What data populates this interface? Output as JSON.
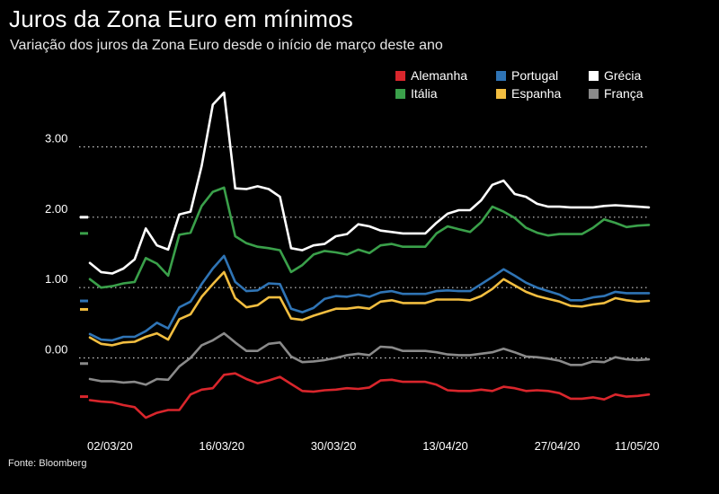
{
  "title": "Juros da Zona Euro em mínimos",
  "subtitle": "Variação dos juros da Zona Euro desde o início de março deste ano",
  "source": "Fonte: Bloomberg",
  "chart_data": {
    "type": "line",
    "ylim": [
      -0.9,
      3.9
    ],
    "yticks": [
      0.0,
      1.0,
      2.0,
      3.0
    ],
    "ytick_labels": [
      "0.00",
      "1.00",
      "2.00",
      "3.00"
    ],
    "x_count": 51,
    "xticks": [
      {
        "index": 0,
        "label": "02/03/20"
      },
      {
        "index": 10,
        "label": "16/03/20"
      },
      {
        "index": 20,
        "label": "30/03/20"
      },
      {
        "index": 30,
        "label": "13/04/20"
      },
      {
        "index": 40,
        "label": "27/04/20"
      },
      {
        "index": 50,
        "label": "11/05/20"
      }
    ],
    "grid": true,
    "legend_position": "top-right",
    "series": [
      {
        "name": "Grécia",
        "color": "#ffffff",
        "values": [
          1.35,
          1.22,
          1.2,
          1.27,
          1.4,
          1.84,
          1.6,
          1.54,
          2.04,
          2.08,
          2.73,
          3.6,
          3.77,
          2.41,
          2.4,
          2.44,
          2.4,
          2.29,
          1.56,
          1.53,
          1.6,
          1.62,
          1.73,
          1.76,
          1.9,
          1.87,
          1.81,
          1.79,
          1.77,
          1.77,
          1.77,
          1.92,
          2.05,
          2.1,
          2.1,
          2.24,
          2.46,
          2.52,
          2.33,
          2.29,
          2.19,
          2.15,
          2.15,
          2.14,
          2.14,
          2.14,
          2.16,
          2.17,
          2.16,
          2.15,
          2.14
        ]
      },
      {
        "name": "Itália",
        "color": "#3aa04a",
        "values": [
          1.12,
          1.0,
          1.02,
          1.06,
          1.08,
          1.42,
          1.34,
          1.17,
          1.75,
          1.78,
          2.16,
          2.36,
          2.42,
          1.73,
          1.63,
          1.58,
          1.56,
          1.53,
          1.22,
          1.32,
          1.47,
          1.52,
          1.5,
          1.47,
          1.54,
          1.49,
          1.6,
          1.62,
          1.58,
          1.58,
          1.58,
          1.77,
          1.87,
          1.83,
          1.79,
          1.93,
          2.15,
          2.08,
          1.99,
          1.85,
          1.78,
          1.74,
          1.76,
          1.76,
          1.76,
          1.85,
          1.97,
          1.92,
          1.86,
          1.88,
          1.89
        ]
      },
      {
        "name": "Portugal",
        "color": "#2f74b5",
        "values": [
          0.34,
          0.26,
          0.25,
          0.3,
          0.3,
          0.38,
          0.5,
          0.42,
          0.72,
          0.8,
          1.05,
          1.27,
          1.45,
          1.08,
          0.95,
          0.96,
          1.06,
          1.05,
          0.7,
          0.65,
          0.71,
          0.84,
          0.88,
          0.87,
          0.9,
          0.87,
          0.93,
          0.95,
          0.91,
          0.91,
          0.91,
          0.95,
          0.96,
          0.95,
          0.95,
          1.05,
          1.15,
          1.26,
          1.17,
          1.07,
          1.0,
          0.95,
          0.9,
          0.82,
          0.82,
          0.86,
          0.88,
          0.94,
          0.92,
          0.92,
          0.92
        ]
      },
      {
        "name": "Espanha",
        "color": "#f2be40",
        "values": [
          0.29,
          0.2,
          0.18,
          0.22,
          0.23,
          0.3,
          0.35,
          0.26,
          0.55,
          0.62,
          0.87,
          1.05,
          1.22,
          0.85,
          0.72,
          0.75,
          0.86,
          0.86,
          0.56,
          0.54,
          0.6,
          0.65,
          0.7,
          0.7,
          0.72,
          0.7,
          0.8,
          0.82,
          0.78,
          0.78,
          0.78,
          0.83,
          0.83,
          0.83,
          0.82,
          0.88,
          0.98,
          1.12,
          1.03,
          0.94,
          0.88,
          0.84,
          0.8,
          0.74,
          0.73,
          0.76,
          0.78,
          0.85,
          0.82,
          0.8,
          0.81
        ]
      },
      {
        "name": "França",
        "color": "#8a8a8a",
        "values": [
          -0.3,
          -0.33,
          -0.33,
          -0.35,
          -0.34,
          -0.38,
          -0.3,
          -0.31,
          -0.12,
          0.0,
          0.18,
          0.25,
          0.35,
          0.22,
          0.1,
          0.1,
          0.2,
          0.22,
          0.02,
          -0.06,
          -0.05,
          -0.03,
          0.0,
          0.04,
          0.06,
          0.04,
          0.16,
          0.15,
          0.1,
          0.1,
          0.1,
          0.08,
          0.05,
          0.04,
          0.04,
          0.06,
          0.08,
          0.13,
          0.08,
          0.02,
          0.01,
          -0.01,
          -0.04,
          -0.1,
          -0.1,
          -0.05,
          -0.06,
          0.01,
          -0.02,
          -0.03,
          -0.02
        ]
      },
      {
        "name": "Alemanha",
        "color": "#d9262c",
        "values": [
          -0.6,
          -0.62,
          -0.63,
          -0.67,
          -0.7,
          -0.85,
          -0.78,
          -0.74,
          -0.74,
          -0.52,
          -0.45,
          -0.43,
          -0.24,
          -0.22,
          -0.3,
          -0.36,
          -0.32,
          -0.27,
          -0.37,
          -0.47,
          -0.48,
          -0.46,
          -0.45,
          -0.43,
          -0.44,
          -0.42,
          -0.32,
          -0.31,
          -0.34,
          -0.34,
          -0.34,
          -0.38,
          -0.46,
          -0.47,
          -0.47,
          -0.45,
          -0.47,
          -0.41,
          -0.43,
          -0.47,
          -0.46,
          -0.47,
          -0.5,
          -0.58,
          -0.58,
          -0.56,
          -0.59,
          -0.52,
          -0.55,
          -0.54,
          -0.52
        ]
      }
    ],
    "axis_markers": [
      {
        "series": "Grécia",
        "value": 2.0
      },
      {
        "series": "Itália",
        "value": 1.77
      },
      {
        "series": "Portugal",
        "value": 0.81
      },
      {
        "series": "Espanha",
        "value": 0.69
      },
      {
        "series": "França",
        "value": -0.08
      },
      {
        "series": "Alemanha",
        "value": -0.55
      }
    ]
  },
  "legend": [
    {
      "label": "Alemanha",
      "color": "#d9262c"
    },
    {
      "label": "Portugal",
      "color": "#2f74b5"
    },
    {
      "label": "Grécia",
      "color": "#ffffff"
    },
    {
      "label": "Itália",
      "color": "#3aa04a"
    },
    {
      "label": "Espanha",
      "color": "#f2be40"
    },
    {
      "label": "França",
      "color": "#8a8a8a"
    }
  ]
}
